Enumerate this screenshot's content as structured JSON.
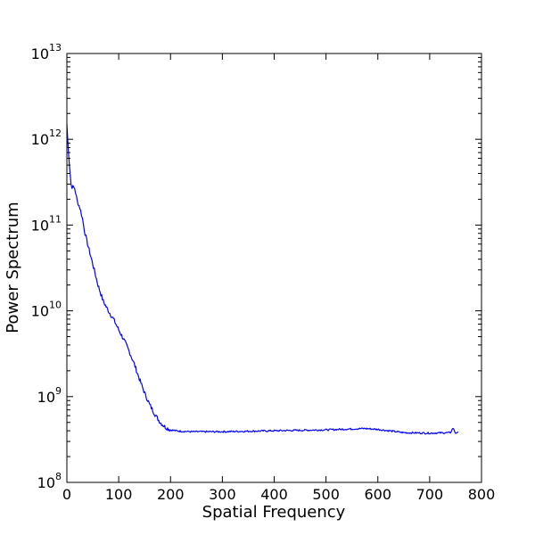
{
  "chart_data": {
    "type": "line",
    "title": "",
    "xlabel": "Spatial Frequency",
    "ylabel": "Power Spectrum",
    "xlim": [
      0,
      800
    ],
    "ylim": [
      100000000.0,
      10000000000000.0
    ],
    "yscale": "log",
    "grid": false,
    "x_ticks": [
      {
        "value": 0,
        "label": "0"
      },
      {
        "value": 100,
        "label": "100"
      },
      {
        "value": 200,
        "label": "200"
      },
      {
        "value": 300,
        "label": "300"
      },
      {
        "value": 400,
        "label": "400"
      },
      {
        "value": 500,
        "label": "500"
      },
      {
        "value": 600,
        "label": "600"
      },
      {
        "value": 700,
        "label": "700"
      },
      {
        "value": 800,
        "label": "800"
      }
    ],
    "y_ticks": [
      {
        "value": 8,
        "base": "10",
        "exp": "8"
      },
      {
        "value": 9,
        "base": "10",
        "exp": "9"
      },
      {
        "value": 10,
        "base": "10",
        "exp": "10"
      },
      {
        "value": 11,
        "base": "10",
        "exp": "11"
      },
      {
        "value": 12,
        "base": "10",
        "exp": "12"
      },
      {
        "value": 13,
        "base": "10",
        "exp": "13"
      }
    ],
    "line_color": "#0000ff",
    "series": [
      {
        "x": [
          0,
          2,
          5,
          8,
          10,
          15,
          20,
          25,
          30,
          35,
          40,
          50,
          60,
          70,
          80,
          90,
          100,
          110,
          120,
          130,
          140,
          150,
          160,
          170,
          180,
          190,
          200,
          210,
          220,
          240,
          260,
          280,
          300,
          350,
          400,
          450,
          500,
          550,
          575,
          600,
          650,
          700,
          740,
          745,
          750,
          755
        ],
        "y": [
          1500000000000.0,
          900000000000.0,
          500000000000.0,
          300000000000.0,
          280000000000.0,
          270000000000.0,
          190000000000.0,
          160000000000.0,
          120000000000.0,
          80000000000.0,
          60000000000.0,
          35000000000.0,
          20000000000.0,
          13000000000.0,
          10000000000.0,
          8000000000.0,
          6000000000.0,
          4600000000.0,
          3400000000.0,
          2400000000.0,
          1600000000.0,
          1100000000.0,
          800000000.0,
          620000000.0,
          500000000.0,
          440000000.0,
          410000000.0,
          400000000.0,
          395000000.0,
          390000000.0,
          390000000.0,
          390000000.0,
          390000000.0,
          395000000.0,
          400000000.0,
          405000000.0,
          410000000.0,
          420000000.0,
          425000000.0,
          415000000.0,
          380000000.0,
          375000000.0,
          380000000.0,
          430000000.0,
          375000000.0,
          390000000.0
        ]
      }
    ]
  }
}
